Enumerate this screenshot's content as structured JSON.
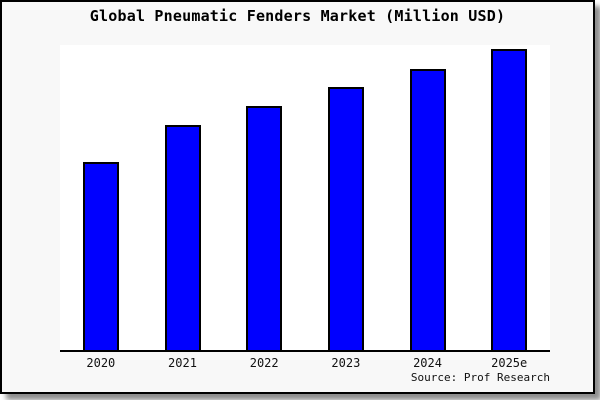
{
  "frame": {
    "background": "#f8f8f8",
    "border_color": "#000000",
    "plot_background": "#ffffff"
  },
  "chart_data": {
    "type": "bar",
    "title": "Global Pneumatic Fenders Market (Million USD)",
    "categories": [
      "2020",
      "2021",
      "2022",
      "2023",
      "2024",
      "2025e"
    ],
    "values_relative": [
      62.5,
      74.8,
      81.1,
      87.4,
      93.4,
      100
    ],
    "bar_heights_pct_of_plot": [
      61.6,
      73.8,
      80.0,
      86.2,
      92.1,
      98.7
    ],
    "bar_color": "#0000ff",
    "bar_border_color": "#000000",
    "xlabel": "",
    "ylabel": "",
    "y_axis_ticks": [],
    "grid": false,
    "legend": false,
    "note": "y-axis is unlabeled; values are relative heights with 2025e = 100"
  },
  "source": {
    "label": "Source: Prof Research"
  }
}
